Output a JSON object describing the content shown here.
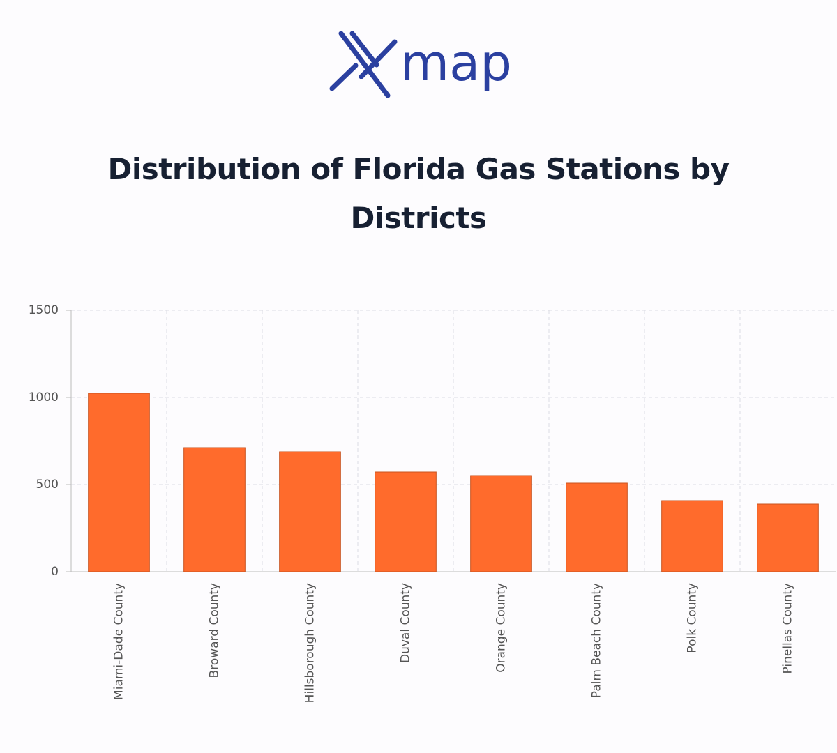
{
  "logo": {
    "text": "map"
  },
  "chart_data": {
    "type": "bar",
    "title": "Distribution of Florida Gas Stations by Districts",
    "categories": [
      "Miami-Dade County",
      "Broward County",
      "Hillsborough County",
      "Duval County",
      "Orange County",
      "Palm Beach County",
      "Polk County",
      "Pinellas County"
    ],
    "values": [
      1024,
      712,
      688,
      572,
      552,
      508,
      408,
      388
    ],
    "color": "#ff6b2c",
    "ylim": [
      0,
      1500
    ],
    "yticks": [
      0,
      500,
      1000,
      1500
    ],
    "grid": true
  }
}
